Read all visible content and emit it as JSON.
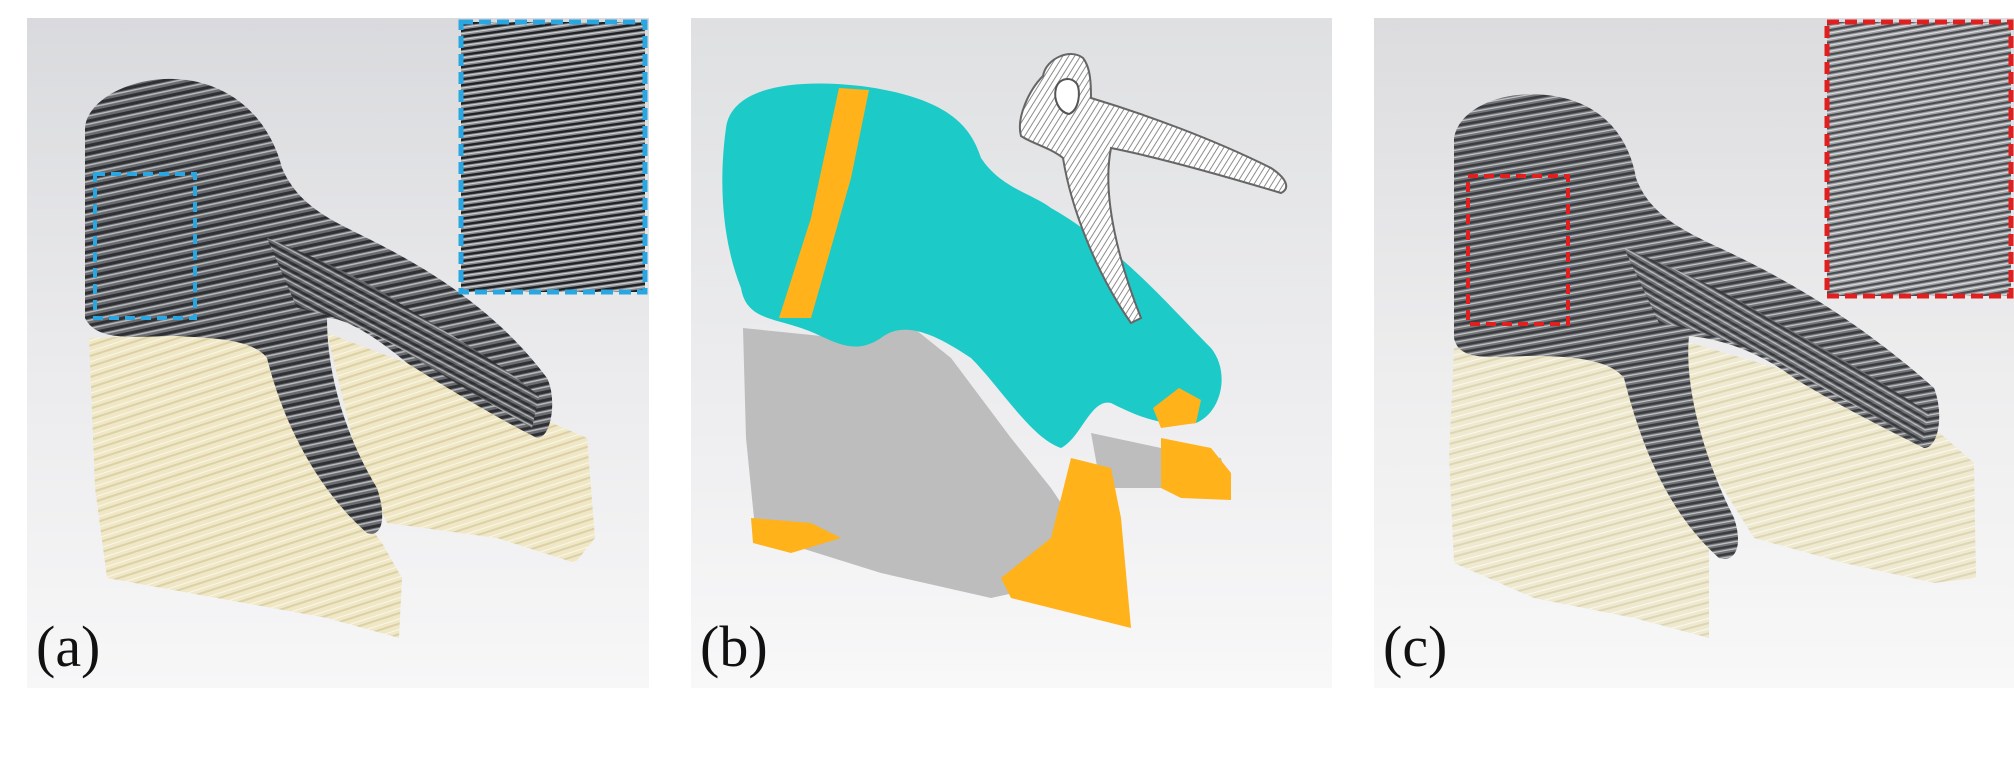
{
  "figure": {
    "panels": [
      {
        "label": "(a)",
        "inset_frame_color": "#2aa6e0"
      },
      {
        "label": "(b)"
      },
      {
        "label": "(c)",
        "inset_frame_color": "#e02020"
      }
    ]
  },
  "colors": {
    "printed_gray": "#5e6064",
    "support_cream": "#efe7c8",
    "region_cyan": "#1ccac8",
    "region_orange": "#ffb21a",
    "region_gray": "#bdbdbd"
  }
}
